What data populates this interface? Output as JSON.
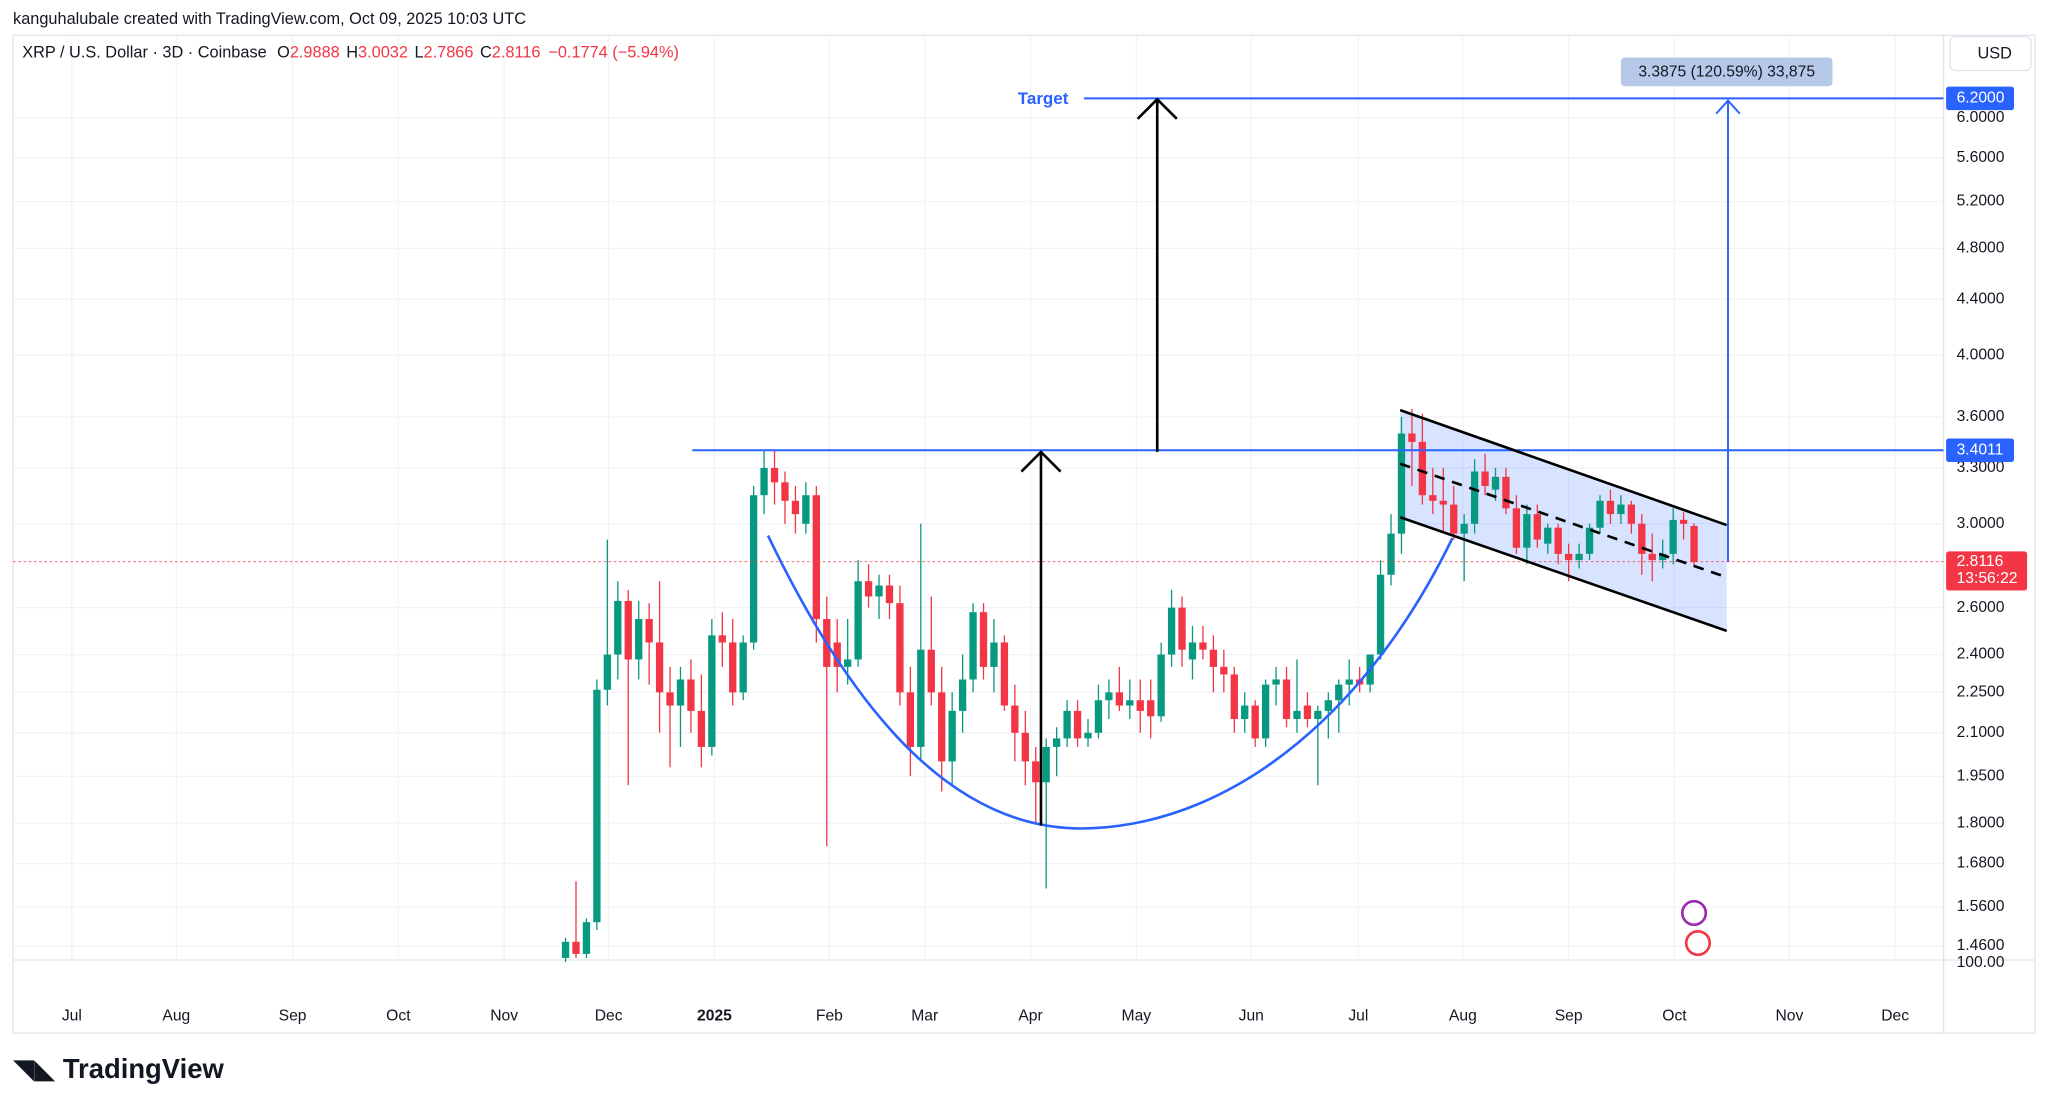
{
  "attribution": "kanguhalubale created with TradingView.com, Oct 09, 2025 10:03 UTC",
  "currency": "USD",
  "logo": "TradingView",
  "chart_data": {
    "type": "candlestick",
    "title": "XRP / U.S. Dollar · 3D · Coinbase",
    "ohlc_labels": [
      "O",
      "H",
      "L",
      "C"
    ],
    "change": "−0.1774 (−5.94%)",
    "countdown": "13:56:22",
    "y_axis_footer": "100.00",
    "log_scale": true,
    "grid": true,
    "up_color": "#089981",
    "down_color": "#f23645",
    "ylim": [
      1.425,
      6.89
    ],
    "yticks": [
      {
        "value": 1.46,
        "label": "1.4600"
      },
      {
        "value": 1.56,
        "label": "1.5600"
      },
      {
        "value": 1.68,
        "label": "1.6800"
      },
      {
        "value": 1.8,
        "label": "1.8000"
      },
      {
        "value": 1.95,
        "label": "1.9500"
      },
      {
        "value": 2.1,
        "label": "2.1000"
      },
      {
        "value": 2.25,
        "label": "2.2500"
      },
      {
        "value": 2.4,
        "label": "2.4000"
      },
      {
        "value": 2.6,
        "label": "2.6000"
      },
      {
        "value": 3,
        "label": "3.0000"
      },
      {
        "value": 3.3,
        "label": "3.3000"
      },
      {
        "value": 3.6,
        "label": "3.6000"
      },
      {
        "value": 4,
        "label": "4.0000"
      },
      {
        "value": 4.4,
        "label": "4.4000"
      },
      {
        "value": 4.8,
        "label": "4.8000"
      },
      {
        "value": 5.2,
        "label": "5.2000"
      },
      {
        "value": 5.6,
        "label": "5.6000"
      },
      {
        "value": 6,
        "label": "6.0000"
      }
    ],
    "x_labels": [
      "Jul",
      "Aug",
      "Sep",
      "Oct",
      "Nov",
      "Dec",
      "2025",
      "Feb",
      "Mar",
      "Apr",
      "May",
      "Jun",
      "Jul",
      "Aug",
      "Sep",
      "Oct",
      "Nov",
      "Dec"
    ],
    "open": [
      1.43,
      1.47,
      1.44,
      1.52,
      2.26,
      2.4,
      2.63,
      2.38,
      2.55,
      2.45,
      2.25,
      2.2,
      2.3,
      2.18,
      2.05,
      2.48,
      2.45,
      2.25,
      2.45,
      3.15,
      3.3,
      3.22,
      3.12,
      3.0,
      3.15,
      2.55,
      2.45,
      2.35,
      2.38,
      2.72,
      2.65,
      2.7,
      2.62,
      2.25,
      2.05,
      2.42,
      2.25,
      2.0,
      2.18,
      2.3,
      2.58,
      2.35,
      2.45,
      2.2,
      2.1,
      2.0,
      1.93,
      2.05,
      2.08,
      2.18,
      2.08,
      2.1,
      2.22,
      2.25,
      2.2,
      2.22,
      2.22,
      2.16,
      2.4,
      2.6,
      2.38,
      2.45,
      2.42,
      2.35,
      2.32,
      2.15,
      2.2,
      2.08,
      2.28,
      2.3,
      2.15,
      2.2,
      2.15,
      2.18,
      2.22,
      2.28,
      2.3,
      2.28,
      2.4,
      2.75,
      2.95,
      3.5,
      3.45,
      3.15,
      3.12,
      3.1,
      2.95,
      3.0,
      3.28,
      3.18,
      3.25,
      3.08,
      2.88,
      3.05,
      2.9,
      2.98,
      2.85,
      2.82,
      2.85,
      2.98,
      3.12,
      3.05,
      3.1,
      3.0,
      2.85,
      2.82,
      2.85,
      3.02,
      2.9888
    ],
    "high": [
      1.48,
      1.63,
      1.53,
      2.3,
      2.92,
      2.72,
      2.68,
      2.63,
      2.62,
      2.72,
      2.35,
      2.35,
      2.38,
      2.32,
      2.55,
      2.58,
      2.55,
      2.48,
      3.2,
      3.4,
      3.4,
      3.28,
      3.2,
      3.22,
      3.2,
      2.65,
      2.55,
      2.55,
      2.82,
      2.8,
      2.75,
      2.75,
      2.7,
      2.35,
      3.0,
      2.65,
      2.35,
      2.25,
      2.4,
      2.62,
      2.62,
      2.55,
      2.48,
      2.28,
      2.18,
      2.05,
      2.08,
      2.12,
      2.22,
      2.22,
      2.15,
      2.28,
      2.3,
      2.35,
      2.3,
      2.3,
      2.3,
      2.45,
      2.68,
      2.65,
      2.52,
      2.52,
      2.48,
      2.42,
      2.35,
      2.25,
      2.22,
      2.3,
      2.35,
      2.35,
      2.38,
      2.25,
      2.2,
      2.25,
      2.3,
      2.38,
      2.35,
      2.4,
      2.82,
      3.05,
      3.6,
      3.65,
      3.62,
      3.3,
      3.3,
      3.2,
      3.05,
      3.35,
      3.38,
      3.3,
      3.3,
      3.15,
      3.1,
      3.1,
      3.0,
      3.0,
      2.9,
      2.9,
      3.0,
      3.15,
      3.18,
      3.15,
      3.12,
      3.05,
      2.95,
      2.92,
      3.08,
      3.06,
      3.0032
    ],
    "low": [
      1.42,
      1.43,
      1.43,
      1.5,
      2.2,
      2.3,
      1.92,
      2.3,
      2.28,
      2.1,
      1.98,
      2.05,
      2.1,
      1.98,
      2.02,
      2.35,
      2.2,
      2.22,
      2.42,
      3.05,
      3.1,
      3.0,
      2.95,
      2.95,
      2.45,
      1.73,
      2.25,
      2.28,
      2.35,
      2.6,
      2.55,
      2.55,
      2.2,
      1.95,
      2.0,
      2.2,
      1.9,
      1.92,
      2.1,
      2.25,
      2.3,
      2.25,
      2.18,
      2.0,
      1.92,
      1.8,
      1.61,
      1.95,
      2.05,
      2.05,
      2.05,
      2.08,
      2.15,
      2.18,
      2.15,
      2.1,
      2.08,
      2.14,
      2.35,
      2.35,
      2.3,
      2.38,
      2.25,
      2.25,
      2.1,
      2.1,
      2.05,
      2.05,
      2.2,
      2.12,
      2.1,
      2.12,
      1.92,
      2.08,
      2.1,
      2.2,
      2.25,
      2.25,
      2.38,
      2.7,
      2.85,
      3.2,
      3.1,
      3.05,
      2.95,
      2.92,
      2.72,
      2.95,
      3.15,
      3.12,
      3.05,
      2.85,
      2.8,
      2.88,
      2.85,
      2.8,
      2.72,
      2.78,
      2.82,
      2.95,
      3.0,
      3.0,
      2.95,
      2.75,
      2.72,
      2.78,
      2.8,
      2.92,
      2.7866
    ],
    "close": [
      1.47,
      1.44,
      1.52,
      2.26,
      2.4,
      2.63,
      2.38,
      2.55,
      2.45,
      2.25,
      2.2,
      2.3,
      2.18,
      2.05,
      2.48,
      2.45,
      2.25,
      2.45,
      3.15,
      3.3,
      3.22,
      3.12,
      3.05,
      3.15,
      2.55,
      2.35,
      2.35,
      2.38,
      2.72,
      2.65,
      2.7,
      2.62,
      2.25,
      2.05,
      2.42,
      2.25,
      2.0,
      2.18,
      2.3,
      2.58,
      2.35,
      2.45,
      2.2,
      2.1,
      2.0,
      1.93,
      2.05,
      2.08,
      2.18,
      2.08,
      2.1,
      2.22,
      2.25,
      2.2,
      2.22,
      2.18,
      2.16,
      2.4,
      2.6,
      2.42,
      2.45,
      2.42,
      2.35,
      2.32,
      2.15,
      2.2,
      2.08,
      2.28,
      2.3,
      2.15,
      2.18,
      2.15,
      2.18,
      2.22,
      2.28,
      2.3,
      2.28,
      2.4,
      2.75,
      2.95,
      3.5,
      3.45,
      3.15,
      3.12,
      3.1,
      2.95,
      3.0,
      3.28,
      3.2,
      3.25,
      3.08,
      2.88,
      3.05,
      2.92,
      2.98,
      2.85,
      2.82,
      2.85,
      2.98,
      3.12,
      3.05,
      3.1,
      3.0,
      2.85,
      2.82,
      2.85,
      3.02,
      3.0,
      2.8116
    ],
    "drawings": {
      "target_text": "Target",
      "neckline": 3.4011,
      "target": {
        "value": 6.2,
        "label": "6.2000"
      },
      "line_color": "#2962ff",
      "measure_label": "3.3875 (120.59%) 33,875"
    }
  }
}
